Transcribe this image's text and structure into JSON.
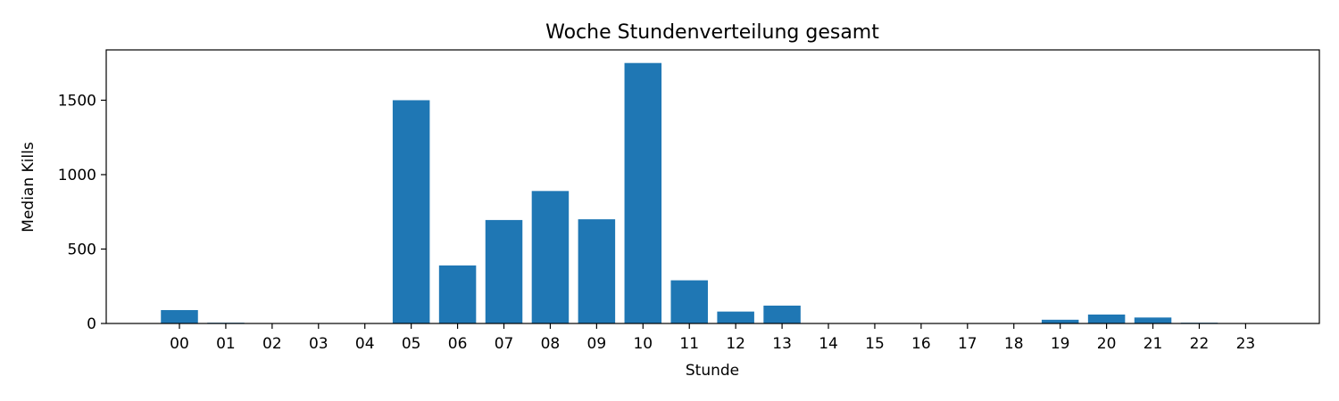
{
  "chart_data": {
    "type": "bar",
    "title": "Woche Stundenverteilung gesamt",
    "xlabel": "Stunde",
    "ylabel": "Median Kills",
    "categories": [
      "00",
      "01",
      "02",
      "03",
      "04",
      "05",
      "06",
      "07",
      "08",
      "09",
      "10",
      "11",
      "12",
      "13",
      "14",
      "15",
      "16",
      "17",
      "18",
      "19",
      "20",
      "21",
      "22",
      "23"
    ],
    "values": [
      90,
      5,
      0,
      0,
      0,
      1500,
      390,
      695,
      890,
      700,
      1750,
      290,
      80,
      120,
      0,
      0,
      0,
      0,
      0,
      25,
      60,
      40,
      5,
      0
    ],
    "ylim": [
      0,
      1838
    ],
    "yticks": [
      0,
      500,
      1000,
      1500
    ],
    "grid": false,
    "bar_color": "#1f77b4"
  }
}
